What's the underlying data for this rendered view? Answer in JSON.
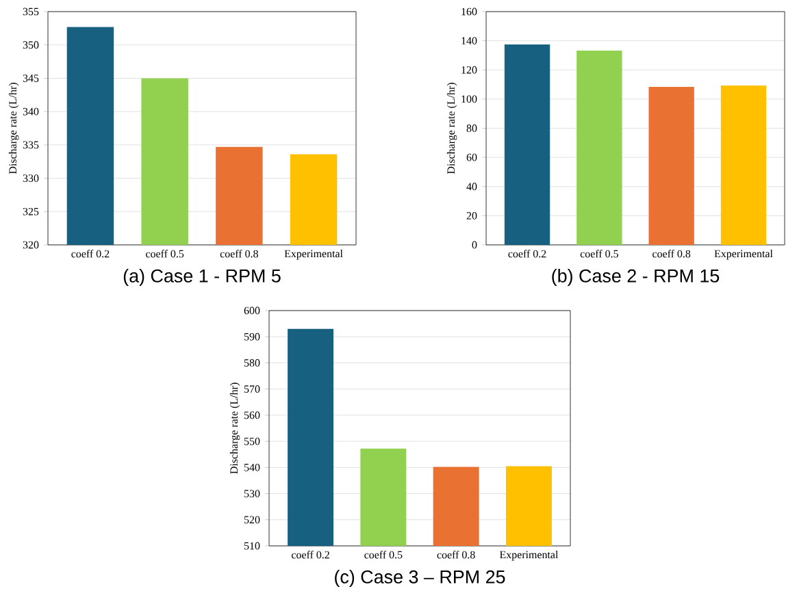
{
  "chart_data": [
    {
      "type": "bar",
      "title": "(a) Case 1 - RPM 5",
      "ylabel": "Discharge rate (L/hr)",
      "categories": [
        "coeff 0.2",
        "coeff 0.5",
        "coeff 0.8",
        "Experimental"
      ],
      "values": [
        352.7,
        345,
        334.7,
        333.6
      ],
      "colors": [
        "#17607f",
        "#92d050",
        "#e97132",
        "#ffc000"
      ],
      "ylim": [
        320,
        355
      ],
      "yticks": [
        320,
        325,
        330,
        335,
        340,
        345,
        350,
        355
      ],
      "grid": "y"
    },
    {
      "type": "bar",
      "title": "(b) Case 2 - RPM 15",
      "ylabel": "Discharge rate (L/hr)",
      "categories": [
        "coeff 0.2",
        "coeff 0.5",
        "coeff 0.8",
        "Experimental"
      ],
      "values": [
        137.5,
        133.3,
        108.4,
        109.3
      ],
      "colors": [
        "#17607f",
        "#92d050",
        "#e97132",
        "#ffc000"
      ],
      "ylim": [
        0,
        160
      ],
      "yticks": [
        0,
        20,
        40,
        60,
        80,
        100,
        120,
        140,
        160
      ],
      "grid": "y"
    },
    {
      "type": "bar",
      "title": "(c) Case 3 – RPM 25",
      "ylabel": "Discharge rate (L/hr)",
      "categories": [
        "coeff 0.2",
        "coeff 0.5",
        "coeff 0.8",
        "Experimental"
      ],
      "values": [
        593,
        547.2,
        540.2,
        540.5
      ],
      "colors": [
        "#17607f",
        "#92d050",
        "#e97132",
        "#ffc000"
      ],
      "ylim": [
        510,
        600
      ],
      "yticks": [
        510,
        520,
        530,
        540,
        550,
        560,
        570,
        580,
        590,
        600
      ],
      "grid": "y"
    }
  ]
}
